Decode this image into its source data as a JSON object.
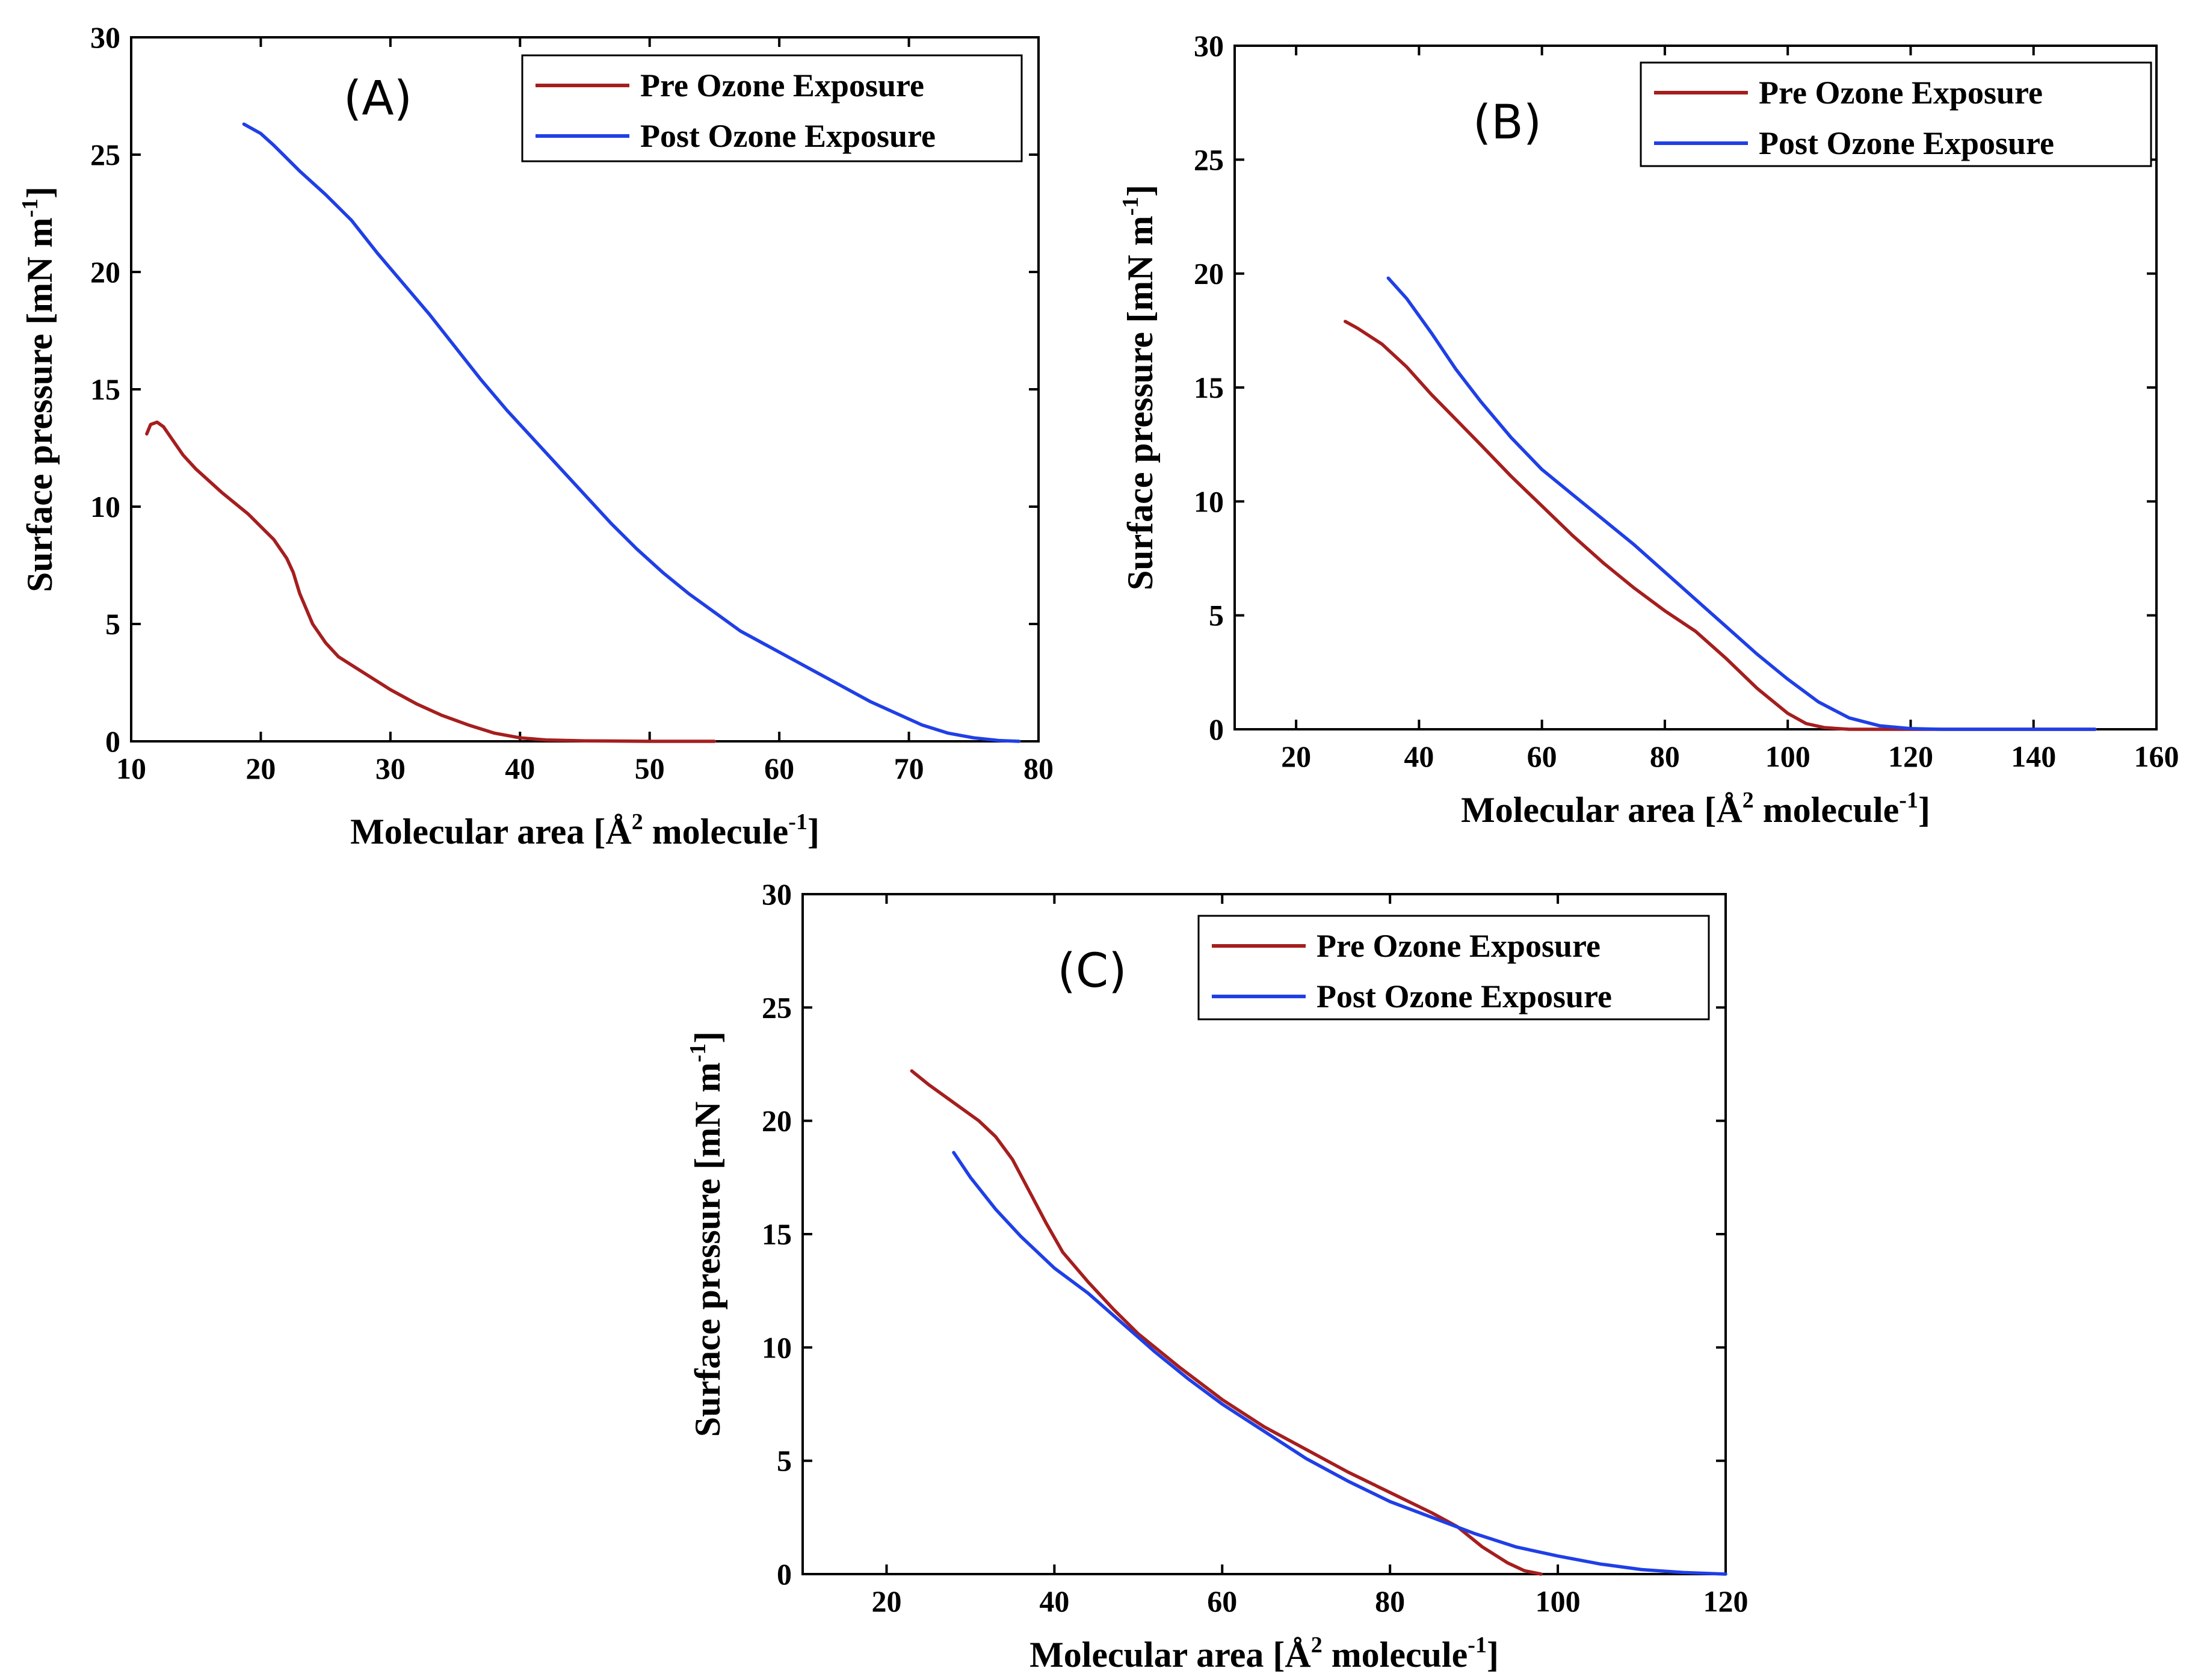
{
  "colors": {
    "pre": "#a51e1e",
    "post": "#1f3fe6",
    "axis": "#000000"
  },
  "chart_data": [
    {
      "type": "line",
      "panel_label": "(A)",
      "xlabel": "Molecular area [Å",
      "xlabel_sup": "2",
      "xlabel_mid": " molecule",
      "xlabel_sup2": "-1",
      "xlabel_end": "]",
      "ylabel": "Surface pressure [mN m",
      "ylabel_sup": "-1",
      "ylabel_end": "]",
      "xlim": [
        10,
        80
      ],
      "ylim": [
        0,
        30
      ],
      "xticks": [
        10,
        20,
        30,
        40,
        50,
        60,
        70,
        80
      ],
      "yticks": [
        0,
        5,
        10,
        15,
        20,
        25,
        30
      ],
      "grid": false,
      "legend_position": "top-right",
      "series": [
        {
          "name": "Pre Ozone Exposure",
          "color_key": "pre",
          "points": [
            [
              11.2,
              13.1
            ],
            [
              11.5,
              13.5
            ],
            [
              12,
              13.6
            ],
            [
              12.5,
              13.4
            ],
            [
              13,
              13
            ],
            [
              14,
              12.2
            ],
            [
              15,
              11.6
            ],
            [
              17,
              10.6
            ],
            [
              19,
              9.7
            ],
            [
              21,
              8.6
            ],
            [
              22,
              7.8
            ],
            [
              22.5,
              7.2
            ],
            [
              23,
              6.3
            ],
            [
              24,
              5
            ],
            [
              25,
              4.2
            ],
            [
              26,
              3.6
            ],
            [
              28,
              2.9
            ],
            [
              30,
              2.2
            ],
            [
              32,
              1.6
            ],
            [
              34,
              1.1
            ],
            [
              36,
              0.7
            ],
            [
              38,
              0.35
            ],
            [
              40,
              0.15
            ],
            [
              42,
              0.06
            ],
            [
              45,
              0.02
            ],
            [
              50,
              0
            ],
            [
              55,
              0
            ]
          ]
        },
        {
          "name": "Post Ozone Exposure",
          "color_key": "post",
          "points": [
            [
              18.7,
              26.3
            ],
            [
              20,
              25.9
            ],
            [
              21,
              25.4
            ],
            [
              23,
              24.3
            ],
            [
              25,
              23.3
            ],
            [
              27,
              22.2
            ],
            [
              29,
              20.8
            ],
            [
              31,
              19.5
            ],
            [
              33,
              18.2
            ],
            [
              35,
              16.8
            ],
            [
              37,
              15.4
            ],
            [
              39,
              14.1
            ],
            [
              41,
              12.9
            ],
            [
              43,
              11.7
            ],
            [
              45,
              10.5
            ],
            [
              47,
              9.3
            ],
            [
              49,
              8.2
            ],
            [
              51,
              7.2
            ],
            [
              53,
              6.3
            ],
            [
              55,
              5.5
            ],
            [
              57,
              4.7
            ],
            [
              59,
              4.1
            ],
            [
              61,
              3.5
            ],
            [
              63,
              2.9
            ],
            [
              65,
              2.3
            ],
            [
              67,
              1.7
            ],
            [
              69,
              1.2
            ],
            [
              71,
              0.7
            ],
            [
              73,
              0.35
            ],
            [
              75,
              0.15
            ],
            [
              77,
              0.03
            ],
            [
              78.5,
              0
            ]
          ]
        }
      ]
    },
    {
      "type": "line",
      "panel_label": "(B)",
      "xlabel": "Molecular area [Å",
      "xlabel_sup": "2",
      "xlabel_mid": " molecule",
      "xlabel_sup2": "-1",
      "xlabel_end": "]",
      "ylabel": "Surface pressure [mN m",
      "ylabel_sup": "-1",
      "ylabel_end": "]",
      "xlim": [
        10,
        160
      ],
      "ylim": [
        0,
        30
      ],
      "xticks": [
        20,
        40,
        60,
        80,
        100,
        120,
        140,
        160
      ],
      "yticks": [
        0,
        5,
        10,
        15,
        20,
        25,
        30
      ],
      "grid": false,
      "legend_position": "top-right",
      "series": [
        {
          "name": "Pre Ozone Exposure",
          "color_key": "pre",
          "points": [
            [
              28,
              17.9
            ],
            [
              30,
              17.6
            ],
            [
              34,
              16.9
            ],
            [
              38,
              15.9
            ],
            [
              42,
              14.7
            ],
            [
              46,
              13.6
            ],
            [
              50,
              12.5
            ],
            [
              55,
              11.1
            ],
            [
              60,
              9.8
            ],
            [
              65,
              8.5
            ],
            [
              70,
              7.3
            ],
            [
              75,
              6.2
            ],
            [
              80,
              5.2
            ],
            [
              85,
              4.3
            ],
            [
              90,
              3.1
            ],
            [
              95,
              1.8
            ],
            [
              100,
              0.7
            ],
            [
              103,
              0.25
            ],
            [
              106,
              0.07
            ],
            [
              110,
              0
            ],
            [
              150,
              0
            ]
          ]
        },
        {
          "name": "Post Ozone Exposure",
          "color_key": "post",
          "points": [
            [
              35,
              19.8
            ],
            [
              38,
              18.9
            ],
            [
              42,
              17.4
            ],
            [
              46,
              15.8
            ],
            [
              50,
              14.4
            ],
            [
              55,
              12.8
            ],
            [
              60,
              11.4
            ],
            [
              65,
              10.3
            ],
            [
              70,
              9.2
            ],
            [
              75,
              8.1
            ],
            [
              80,
              6.9
            ],
            [
              85,
              5.7
            ],
            [
              90,
              4.5
            ],
            [
              95,
              3.3
            ],
            [
              100,
              2.2
            ],
            [
              105,
              1.2
            ],
            [
              110,
              0.5
            ],
            [
              115,
              0.15
            ],
            [
              120,
              0.03
            ],
            [
              125,
              0
            ],
            [
              150,
              0
            ]
          ]
        }
      ]
    },
    {
      "type": "line",
      "panel_label": "(C)",
      "xlabel": "Molecular area [Å",
      "xlabel_sup": "2",
      "xlabel_mid": " molecule",
      "xlabel_sup2": "-1",
      "xlabel_end": "]",
      "ylabel": "Surface pressure [mN m",
      "ylabel_sup": "-1",
      "ylabel_end": "]",
      "xlim": [
        10,
        120
      ],
      "ylim": [
        0,
        30
      ],
      "xticks": [
        20,
        40,
        60,
        80,
        100,
        120
      ],
      "yticks": [
        0,
        5,
        10,
        15,
        20,
        25,
        30
      ],
      "grid": false,
      "legend_position": "top-right",
      "series": [
        {
          "name": "Pre Ozone Exposure",
          "color_key": "pre",
          "points": [
            [
              23,
              22.2
            ],
            [
              25,
              21.6
            ],
            [
              28,
              20.8
            ],
            [
              31,
              20
            ],
            [
              33,
              19.3
            ],
            [
              35,
              18.3
            ],
            [
              37,
              16.9
            ],
            [
              39,
              15.5
            ],
            [
              41,
              14.2
            ],
            [
              44,
              12.9
            ],
            [
              47,
              11.7
            ],
            [
              50,
              10.6
            ],
            [
              55,
              9.1
            ],
            [
              60,
              7.7
            ],
            [
              65,
              6.5
            ],
            [
              70,
              5.5
            ],
            [
              75,
              4.5
            ],
            [
              80,
              3.6
            ],
            [
              85,
              2.7
            ],
            [
              88,
              2.1
            ],
            [
              91,
              1.2
            ],
            [
              94,
              0.5
            ],
            [
              96,
              0.15
            ],
            [
              98,
              0
            ]
          ]
        },
        {
          "name": "Post Ozone Exposure",
          "color_key": "post",
          "points": [
            [
              28,
              18.6
            ],
            [
              30,
              17.5
            ],
            [
              33,
              16.1
            ],
            [
              36,
              14.9
            ],
            [
              40,
              13.5
            ],
            [
              44,
              12.4
            ],
            [
              48,
              11.1
            ],
            [
              52,
              9.8
            ],
            [
              56,
              8.6
            ],
            [
              60,
              7.5
            ],
            [
              65,
              6.3
            ],
            [
              70,
              5.1
            ],
            [
              75,
              4.1
            ],
            [
              80,
              3.2
            ],
            [
              85,
              2.5
            ],
            [
              90,
              1.8
            ],
            [
              95,
              1.2
            ],
            [
              100,
              0.8
            ],
            [
              105,
              0.45
            ],
            [
              110,
              0.2
            ],
            [
              115,
              0.07
            ],
            [
              120,
              0
            ]
          ]
        }
      ]
    }
  ]
}
